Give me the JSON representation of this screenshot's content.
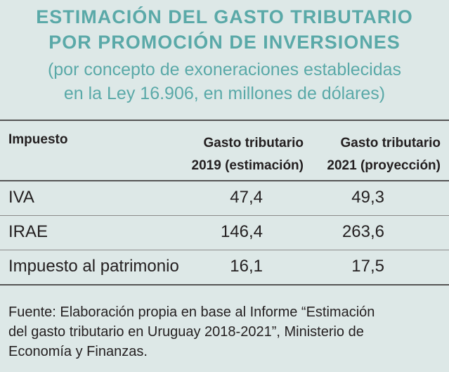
{
  "header": {
    "title_line1": "ESTIMACIÓN DEL GASTO TRIBUTARIO",
    "title_line2": "POR PROMOCIÓN DE INVERSIONES",
    "subtitle_line1": "(por concepto de exoneraciones establecidas",
    "subtitle_line2": "en la Ley 16.906, en millones de dólares)"
  },
  "table": {
    "columns": [
      {
        "line1": "Impuesto",
        "line2": ""
      },
      {
        "line1": "Gasto tributario",
        "line2": "2019 (estimación)"
      },
      {
        "line1": "Gasto tributario",
        "line2": "2021 (proyección)"
      }
    ],
    "rows": [
      {
        "impuesto": "IVA",
        "v2019": "47,4",
        "v2021": "49,3"
      },
      {
        "impuesto": "IRAE",
        "v2019": "146,4",
        "v2021": "263,6"
      },
      {
        "impuesto": "Impuesto al patrimonio",
        "v2019": "16,1",
        "v2021": "17,5"
      }
    ]
  },
  "footer": {
    "source_line1": "Fuente: Elaboración propia en base al Informe “Estimación",
    "source_line2": "del gasto tributario en Uruguay 2018-2021”, Ministerio de",
    "source_line3": "Economía y Finanzas."
  }
}
